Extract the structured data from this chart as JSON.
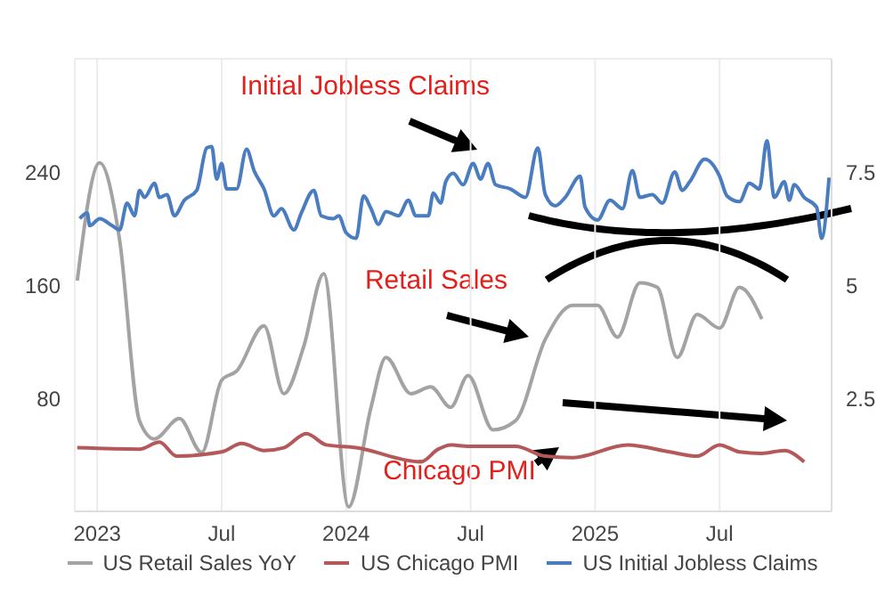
{
  "chart_data": {
    "type": "line",
    "xlim": [
      2022.91,
      2025.95
    ],
    "xticks": [
      2023,
      {
        "value": 2023.5,
        "label": "Jul"
      },
      2024,
      {
        "value": 2024.5,
        "label": "Jul"
      },
      2025,
      {
        "value": 2025.5,
        "label": "Jul"
      }
    ],
    "ylim": [
      0,
      320
    ],
    "yticks": [
      80,
      160,
      240
    ],
    "y2lim": [
      0,
      10
    ],
    "y2ticks": [
      2.5,
      5,
      7.5
    ],
    "grid": true,
    "legend": "bottom",
    "annotations": [
      "Initial Jobless Claims",
      "Retail Sales",
      "Chicago PMI"
    ],
    "series": [
      {
        "name": "US Retail Sales YoY",
        "color": "#a3a3a3",
        "axis": "y2",
        "x": [
          2022.92,
          2023.01,
          2023.09,
          2023.17,
          2023.23,
          2023.33,
          2023.42,
          2023.5,
          2023.56,
          2023.67,
          2023.75,
          2023.83,
          2023.91,
          2024.01,
          2024.1,
          2024.16,
          2024.26,
          2024.34,
          2024.42,
          2024.49,
          2024.59,
          2024.68,
          2024.8,
          2024.91,
          2025.01,
          2025.09,
          2025.18,
          2025.25,
          2025.33,
          2025.41,
          2025.5,
          2025.58,
          2025.67
        ],
        "values": [
          5.1,
          7.7,
          6.0,
          2.0,
          1.6,
          2.05,
          1.3,
          2.9,
          3.1,
          4.1,
          2.6,
          3.65,
          5.25,
          0.1,
          2.3,
          3.4,
          2.6,
          2.75,
          2.3,
          3.0,
          1.8,
          2.0,
          3.8,
          4.55,
          4.55,
          3.85,
          5.05,
          4.95,
          3.4,
          4.35,
          4.05,
          4.95,
          4.25
        ]
      },
      {
        "name": "US Chicago PMI",
        "color": "#b5585a",
        "x": [
          2022.92,
          2023.17,
          2023.25,
          2023.32,
          2023.5,
          2023.58,
          2023.67,
          2023.75,
          2023.84,
          2023.92,
          2024.04,
          2024.3,
          2024.37,
          2024.42,
          2024.49,
          2024.68,
          2024.8,
          2024.91,
          2025.13,
          2025.3,
          2025.41,
          2025.5,
          2025.58,
          2025.67,
          2025.76,
          2025.84
        ],
        "values": [
          45,
          44,
          49,
          39,
          42,
          48,
          43,
          45,
          55,
          47,
          45,
          35,
          44,
          47,
          46,
          46,
          39,
          38,
          47,
          42,
          39,
          47,
          42,
          41,
          43,
          35
        ]
      },
      {
        "name": "US Initial Jobless Claims",
        "color": "#4a7dc0",
        "x": [
          2022.93,
          2022.96,
          2022.97,
          2023.01,
          2023.06,
          2023.09,
          2023.12,
          2023.15,
          2023.17,
          2023.19,
          2023.23,
          2023.25,
          2023.28,
          2023.31,
          2023.35,
          2023.4,
          2023.44,
          2023.46,
          2023.48,
          2023.5,
          2023.52,
          2023.56,
          2023.6,
          2023.63,
          2023.67,
          2023.71,
          2023.74,
          2023.79,
          2023.82,
          2023.87,
          2023.9,
          2023.95,
          2023.97,
          2024.0,
          2024.04,
          2024.07,
          2024.1,
          2024.13,
          2024.16,
          2024.21,
          2024.25,
          2024.28,
          2024.33,
          2024.35,
          2024.38,
          2024.4,
          2024.43,
          2024.47,
          2024.51,
          2024.54,
          2024.57,
          2024.6,
          2024.66,
          2024.72,
          2024.77,
          2024.8,
          2024.84,
          2024.88,
          2024.94,
          2024.96,
          2025.01,
          2025.06,
          2025.11,
          2025.15,
          2025.18,
          2025.23,
          2025.27,
          2025.32,
          2025.35,
          2025.38,
          2025.44,
          2025.5,
          2025.53,
          2025.58,
          2025.62,
          2025.66,
          2025.69,
          2025.72,
          2025.76,
          2025.78,
          2025.8,
          2025.84,
          2025.89,
          2025.91,
          2025.94
        ],
        "values": [
          207,
          211,
          202,
          207,
          202,
          199,
          218,
          209,
          227,
          222,
          232,
          222,
          224,
          209,
          220,
          227,
          257,
          258,
          235,
          246,
          228,
          228,
          256,
          241,
          228,
          209,
          214,
          199,
          211,
          227,
          209,
          207,
          209,
          197,
          193,
          223,
          214,
          203,
          212,
          209,
          220,
          209,
          209,
          225,
          218,
          233,
          239,
          231,
          246,
          235,
          246,
          231,
          228,
          222,
          257,
          224,
          216,
          222,
          237,
          215,
          206,
          220,
          214,
          241,
          222,
          224,
          218,
          240,
          227,
          233,
          249,
          237,
          223,
          219,
          232,
          228,
          262,
          222,
          233,
          220,
          231,
          222,
          215,
          193,
          236
        ]
      }
    ]
  }
}
